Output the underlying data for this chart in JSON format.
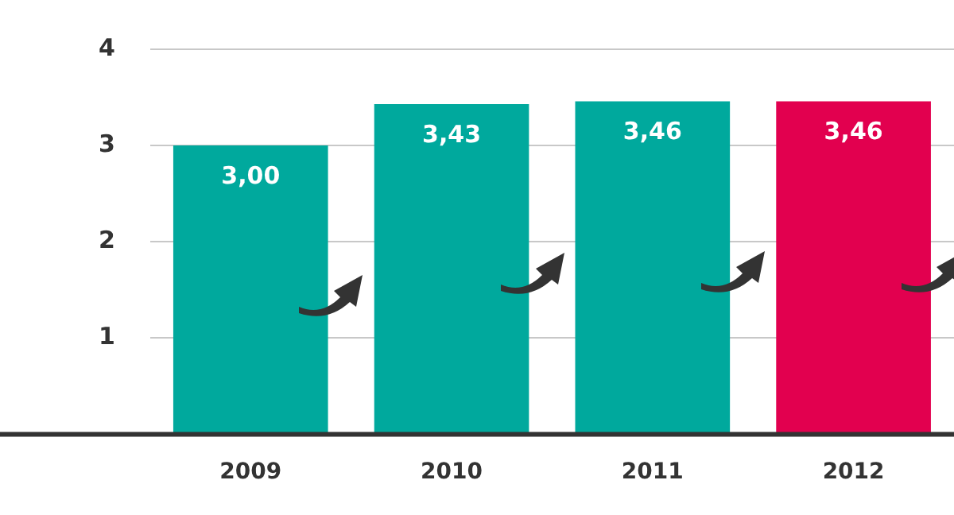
{
  "chart_data": {
    "type": "bar",
    "categories": [
      "2009",
      "2010",
      "2011",
      "2012"
    ],
    "values": [
      3.0,
      3.43,
      3.46,
      3.46
    ],
    "value_labels": [
      "3,00",
      "3,43",
      "3,46",
      "3,46"
    ],
    "colors": [
      "#00a99d",
      "#00a99d",
      "#00a99d",
      "#e2004f"
    ],
    "ylim": [
      0,
      4
    ],
    "yticks": [
      1,
      2,
      3,
      4
    ],
    "grid": "y",
    "legend": false
  }
}
